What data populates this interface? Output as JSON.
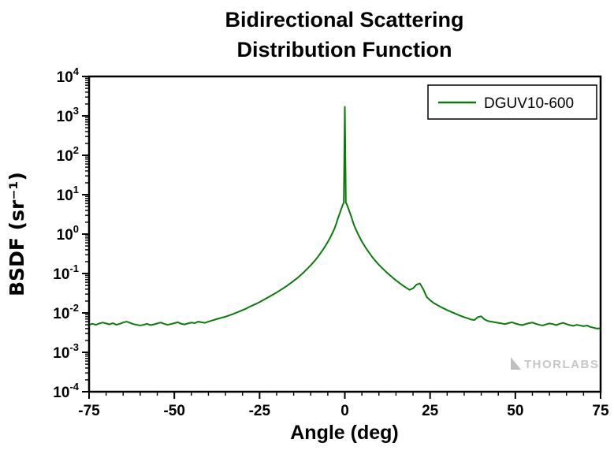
{
  "page": {
    "background": "#ffffff"
  },
  "chart_data": {
    "type": "line",
    "title_line1": "Bidirectional Scattering",
    "title_line2": "Distribution Function",
    "xlabel": "Angle (deg)",
    "ylabel": "BSDF (sr⁻¹)",
    "xlim": [
      -75,
      75
    ],
    "x_ticks": [
      -75,
      -50,
      -25,
      0,
      25,
      50,
      75
    ],
    "x_minor_step": 5,
    "y_scale": "log",
    "ylim_exponents": [
      -4,
      4
    ],
    "y_tick_exponents": [
      4,
      3,
      2,
      1,
      0,
      -1,
      -2,
      -3,
      -4
    ],
    "grid": false,
    "legend": {
      "position": "top-right",
      "entries": [
        {
          "label": "DGUV10-600",
          "color": "#0b7b0b"
        }
      ]
    },
    "watermark": "THORLABS",
    "series": [
      {
        "name": "DGUV10-600",
        "color": "#0b7b0b",
        "points": [
          [
            -75,
            0.005
          ],
          [
            -74,
            0.0053
          ],
          [
            -73,
            0.005
          ],
          [
            -72,
            0.0054
          ],
          [
            -71,
            0.0057
          ],
          [
            -70,
            0.0054
          ],
          [
            -69,
            0.0051
          ],
          [
            -68,
            0.0055
          ],
          [
            -67,
            0.005
          ],
          [
            -66,
            0.0053
          ],
          [
            -65,
            0.0057
          ],
          [
            -64,
            0.006
          ],
          [
            -63,
            0.0056
          ],
          [
            -62,
            0.0052
          ],
          [
            -61,
            0.005
          ],
          [
            -60,
            0.0048
          ],
          [
            -59,
            0.005
          ],
          [
            -58,
            0.0053
          ],
          [
            -57,
            0.0049
          ],
          [
            -56,
            0.0051
          ],
          [
            -55,
            0.0054
          ],
          [
            -54,
            0.0057
          ],
          [
            -53,
            0.0053
          ],
          [
            -52,
            0.005
          ],
          [
            -51,
            0.0052
          ],
          [
            -50,
            0.0055
          ],
          [
            -49,
            0.0058
          ],
          [
            -48,
            0.0053
          ],
          [
            -47,
            0.0051
          ],
          [
            -46,
            0.0054
          ],
          [
            -45,
            0.0057
          ],
          [
            -44,
            0.0055
          ],
          [
            -43,
            0.006
          ],
          [
            -42,
            0.0058
          ],
          [
            -41,
            0.0056
          ],
          [
            -40,
            0.006
          ],
          [
            -39,
            0.0064
          ],
          [
            -38,
            0.0068
          ],
          [
            -37,
            0.0072
          ],
          [
            -36,
            0.0076
          ],
          [
            -35,
            0.008
          ],
          [
            -34,
            0.0086
          ],
          [
            -33,
            0.0092
          ],
          [
            -32,
            0.01
          ],
          [
            -31,
            0.0108
          ],
          [
            -30,
            0.0118
          ],
          [
            -29,
            0.0128
          ],
          [
            -28,
            0.0142
          ],
          [
            -27,
            0.0156
          ],
          [
            -26,
            0.017
          ],
          [
            -25,
            0.0188
          ],
          [
            -24,
            0.021
          ],
          [
            -23,
            0.0235
          ],
          [
            -22,
            0.0262
          ],
          [
            -21,
            0.0295
          ],
          [
            -20,
            0.033
          ],
          [
            -19,
            0.0375
          ],
          [
            -18,
            0.0425
          ],
          [
            -17,
            0.0485
          ],
          [
            -16,
            0.056
          ],
          [
            -15,
            0.065
          ],
          [
            -14,
            0.076
          ],
          [
            -13,
            0.09
          ],
          [
            -12,
            0.108
          ],
          [
            -11,
            0.132
          ],
          [
            -10,
            0.162
          ],
          [
            -9,
            0.202
          ],
          [
            -8,
            0.258
          ],
          [
            -7,
            0.34
          ],
          [
            -6,
            0.455
          ],
          [
            -5,
            0.63
          ],
          [
            -4,
            0.91
          ],
          [
            -3,
            1.4
          ],
          [
            -2.5,
            1.85
          ],
          [
            -2,
            2.55
          ],
          [
            -1.5,
            3.35
          ],
          [
            -1,
            4.45
          ],
          [
            -0.6,
            5.55
          ],
          [
            -0.3,
            6.25
          ],
          [
            0,
            1700
          ],
          [
            0.3,
            6.35
          ],
          [
            0.6,
            5.65
          ],
          [
            1,
            4.55
          ],
          [
            1.5,
            3.45
          ],
          [
            2,
            2.6
          ],
          [
            2.5,
            1.9
          ],
          [
            3,
            1.45
          ],
          [
            4,
            0.95
          ],
          [
            5,
            0.65
          ],
          [
            6,
            0.47
          ],
          [
            7,
            0.35
          ],
          [
            8,
            0.265
          ],
          [
            9,
            0.208
          ],
          [
            10,
            0.166
          ],
          [
            11,
            0.136
          ],
          [
            12,
            0.112
          ],
          [
            13,
            0.094
          ],
          [
            14,
            0.079
          ],
          [
            15,
            0.067
          ],
          [
            16,
            0.0575
          ],
          [
            17,
            0.0498
          ],
          [
            18,
            0.0435
          ],
          [
            19,
            0.0385
          ],
          [
            20,
            0.042
          ],
          [
            21,
            0.052
          ],
          [
            22,
            0.056
          ],
          [
            23,
            0.04
          ],
          [
            24,
            0.0255
          ],
          [
            25,
            0.021
          ],
          [
            26,
            0.018
          ],
          [
            27,
            0.016
          ],
          [
            28,
            0.0144
          ],
          [
            29,
            0.013
          ],
          [
            30,
            0.0118
          ],
          [
            31,
            0.0108
          ],
          [
            32,
            0.0099
          ],
          [
            33,
            0.0091
          ],
          [
            34,
            0.0084
          ],
          [
            35,
            0.0078
          ],
          [
            36,
            0.0073
          ],
          [
            37,
            0.0068
          ],
          [
            38,
            0.0066
          ],
          [
            39,
            0.0078
          ],
          [
            40,
            0.0082
          ],
          [
            41,
            0.0068
          ],
          [
            42,
            0.0062
          ],
          [
            43,
            0.006
          ],
          [
            44,
            0.0058
          ],
          [
            45,
            0.0056
          ],
          [
            46,
            0.0054
          ],
          [
            47,
            0.0052
          ],
          [
            48,
            0.0055
          ],
          [
            49,
            0.0058
          ],
          [
            50,
            0.0054
          ],
          [
            51,
            0.0051
          ],
          [
            52,
            0.0049
          ],
          [
            53,
            0.0052
          ],
          [
            54,
            0.0055
          ],
          [
            55,
            0.0057
          ],
          [
            56,
            0.0053
          ],
          [
            57,
            0.005
          ],
          [
            58,
            0.0048
          ],
          [
            59,
            0.0051
          ],
          [
            60,
            0.0054
          ],
          [
            61,
            0.0052
          ],
          [
            62,
            0.0049
          ],
          [
            63,
            0.0053
          ],
          [
            64,
            0.0056
          ],
          [
            65,
            0.0052
          ],
          [
            66,
            0.0049
          ],
          [
            67,
            0.0047
          ],
          [
            68,
            0.005
          ],
          [
            69,
            0.0048
          ],
          [
            70,
            0.0046
          ],
          [
            71,
            0.0048
          ],
          [
            72,
            0.0044
          ],
          [
            73,
            0.0042
          ],
          [
            74,
            0.004
          ],
          [
            75,
            0.0041
          ]
        ]
      }
    ]
  }
}
